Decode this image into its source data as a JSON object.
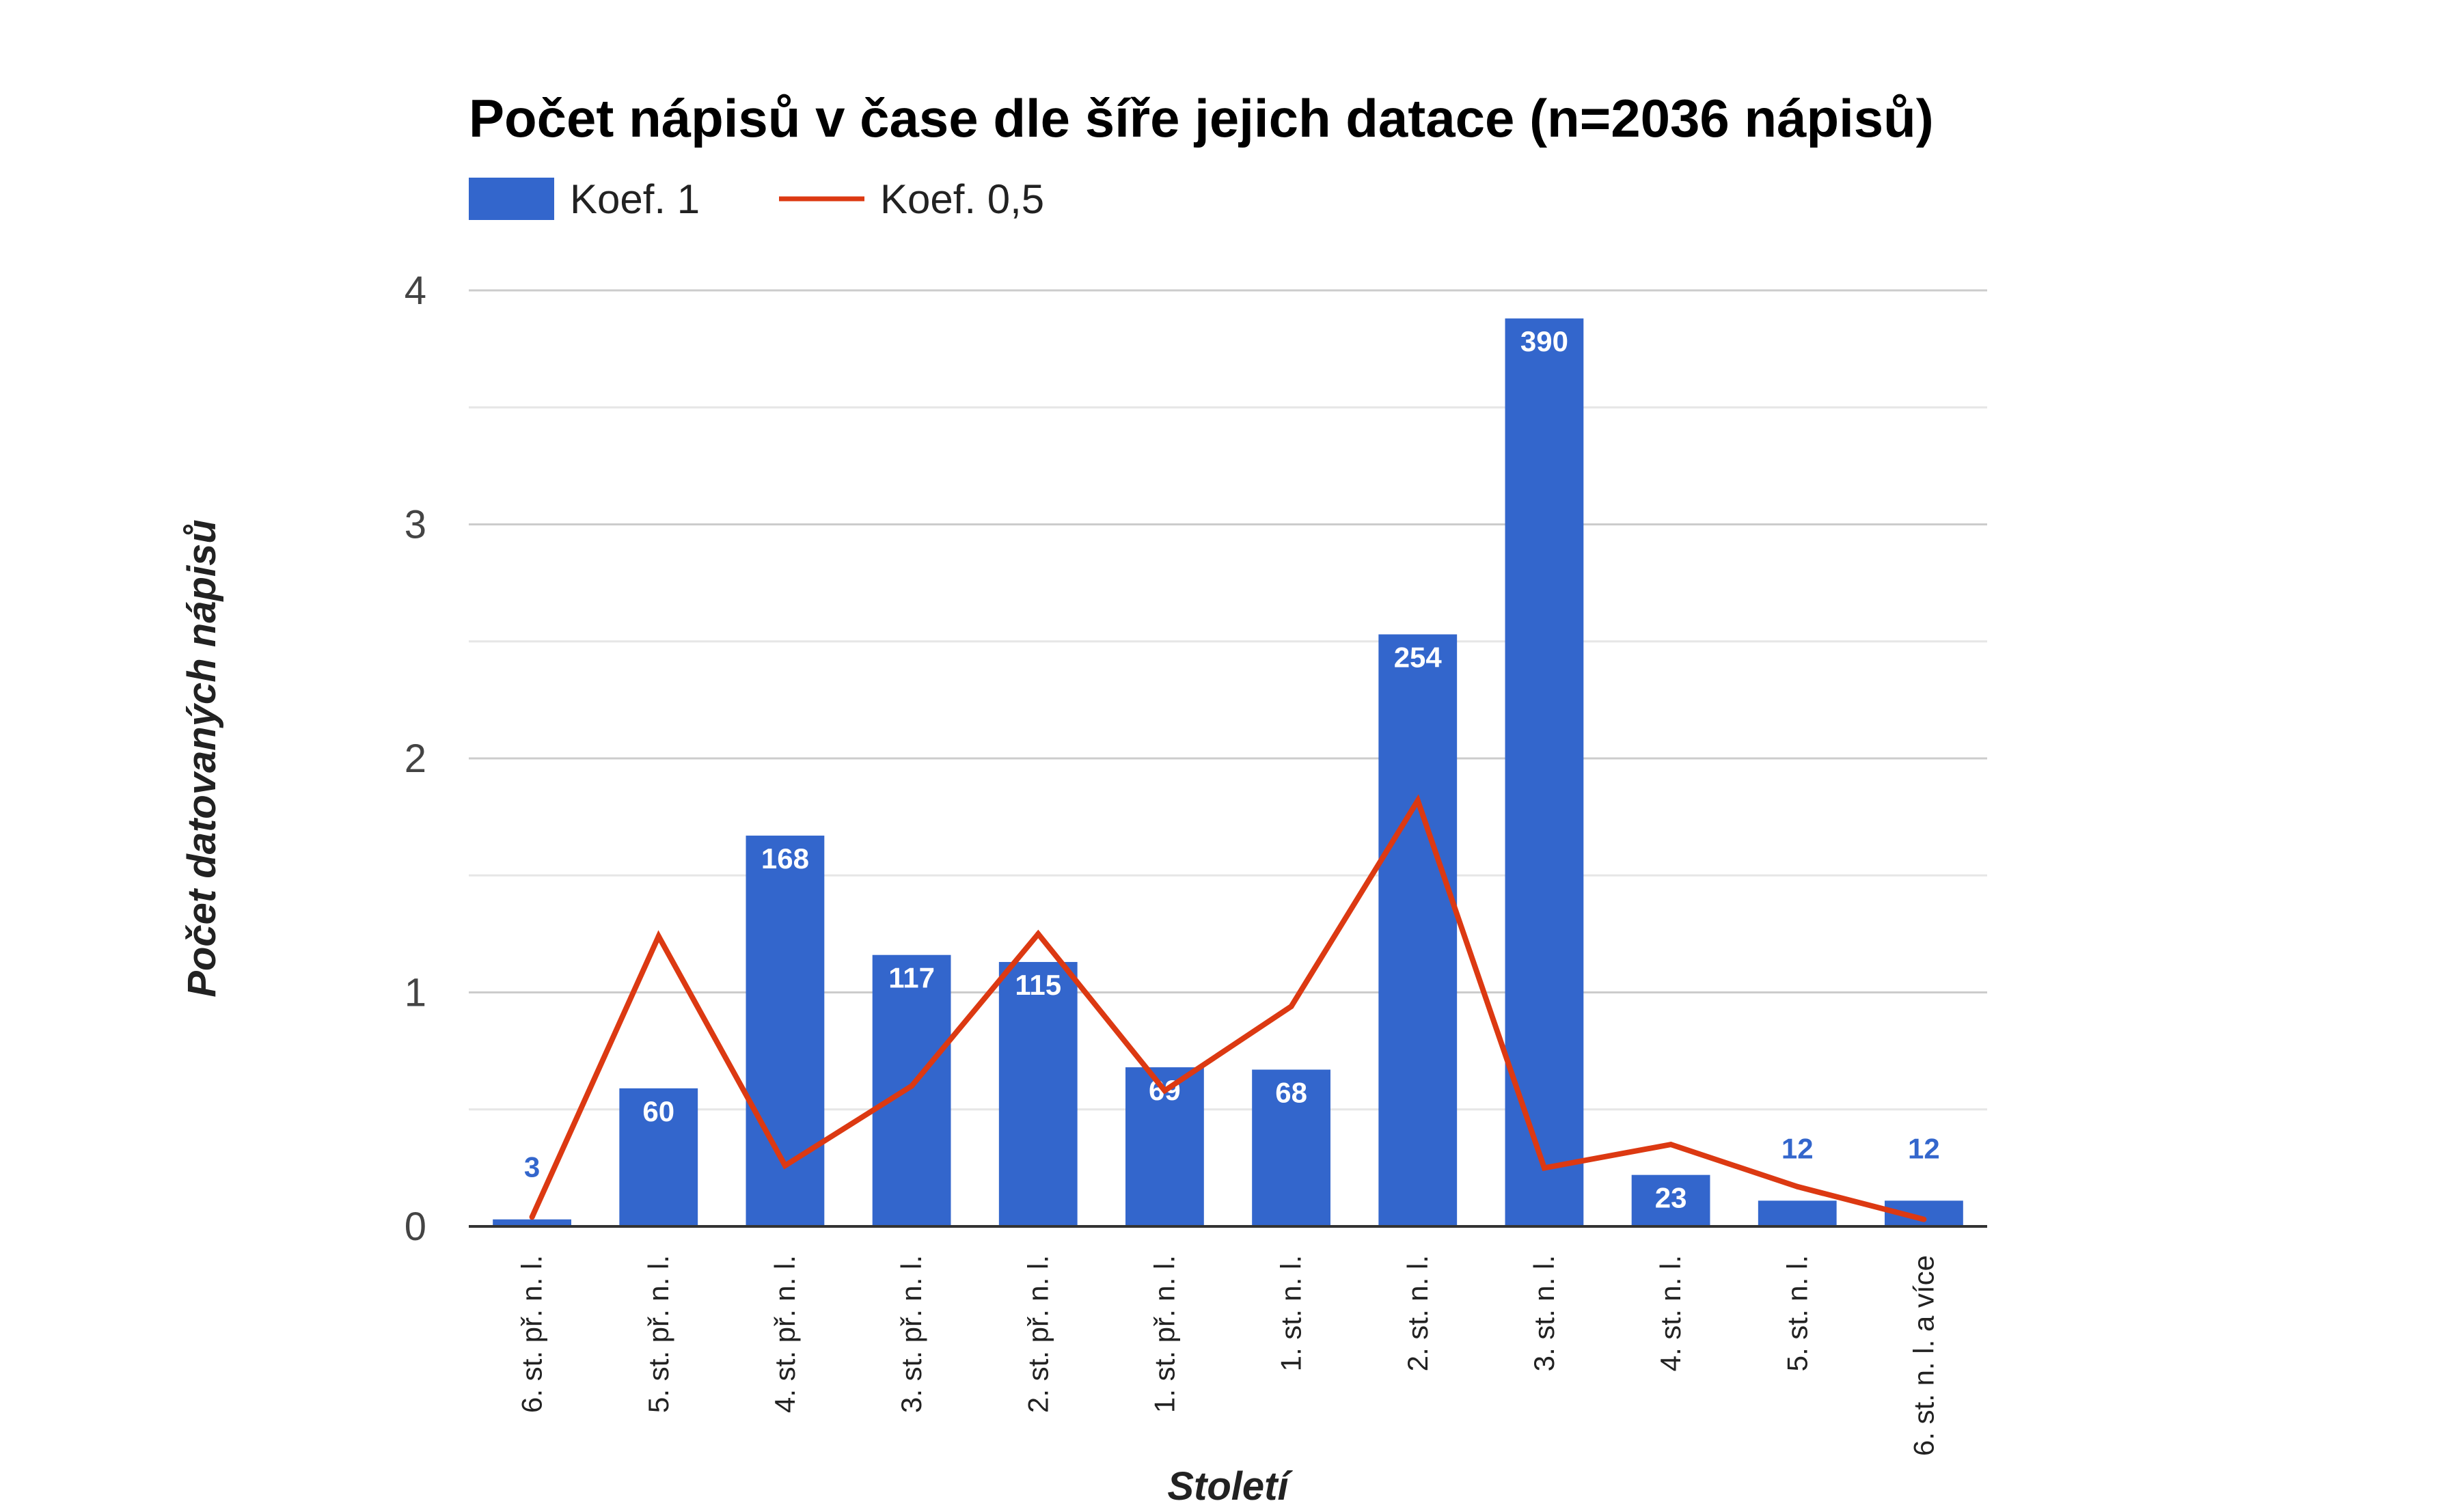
{
  "chart_data": {
    "type": "bar",
    "title": "Počet nápisů v čase dle šíře jejich datace (n=2036 nápisů)",
    "xlabel": "Století",
    "ylabel": "Počet datovaných nápisů",
    "ylim": [
      0,
      4
    ],
    "yticks": [
      "0",
      "1",
      "2",
      "3",
      "4"
    ],
    "grid": true,
    "legend_position": "top-left",
    "categories": [
      "6. st. př. n. l.",
      "5. st. př. n. l.",
      "4. st. př. n. l.",
      "3. st. př. n. l.",
      "2. st. př. n. l.",
      "1. st. př. n. l.",
      "1. st. n. l.",
      "2. st. n. l.",
      "3. st. n. l.",
      "4. st. n. l.",
      "5. st. n. l.",
      "6. st. n. l. a více"
    ],
    "series": [
      {
        "name": "Koef. 1",
        "type": "bar",
        "color": "#3366cc",
        "values": [
          0.03,
          0.59,
          1.67,
          1.16,
          1.13,
          0.68,
          0.67,
          2.53,
          3.88,
          0.22,
          0.11,
          0.11
        ],
        "labels": [
          "3",
          "60",
          "168",
          "117",
          "115",
          "69",
          "68",
          "254",
          "390",
          "23",
          "12",
          "12"
        ]
      },
      {
        "name": "Koef. 0,5",
        "type": "line",
        "color": "#dc3912",
        "values": [
          0.04,
          1.24,
          0.26,
          0.6,
          1.25,
          0.58,
          0.94,
          1.82,
          0.25,
          0.35,
          0.17,
          0.03
        ]
      }
    ]
  }
}
